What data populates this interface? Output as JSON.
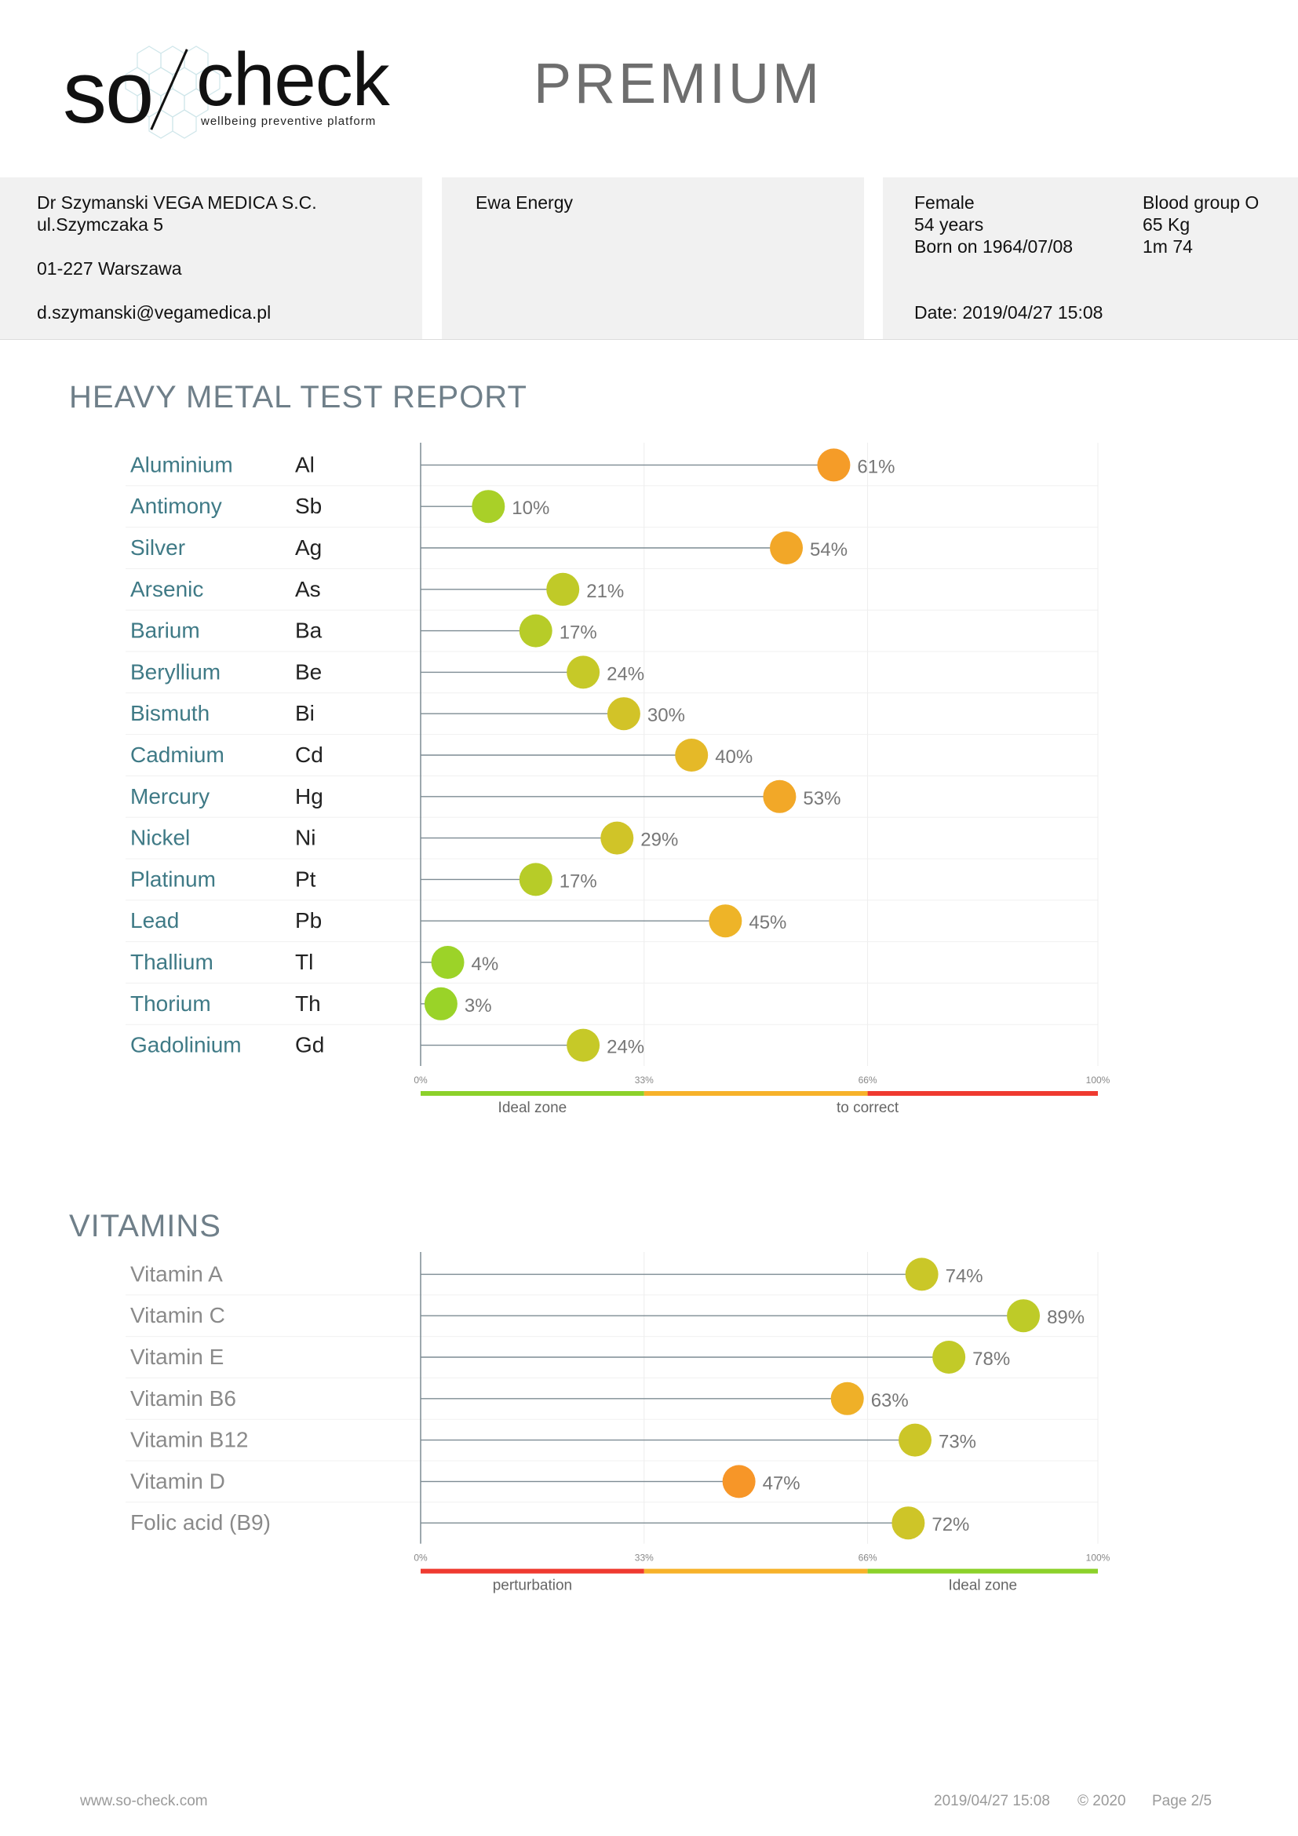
{
  "brand": {
    "logo_so": "so",
    "logo_check": "check",
    "tagline": "wellbeing preventive platform",
    "edition": "PREMIUM"
  },
  "practitioner": {
    "name": "Dr Szymanski VEGA MEDICA S.C.",
    "street": "ul.Szymczaka 5",
    "city": "01-227 Warszawa",
    "email": "d.szymanski@vegamedica.pl"
  },
  "client": {
    "name": "Ewa Energy"
  },
  "patient": {
    "sex": "Female",
    "age": "54 years",
    "born": "Born on 1964/07/08",
    "blood": "Blood group O",
    "weight": "65 Kg",
    "height": "1m 74",
    "date": "Date: 2019/04/27 15:08"
  },
  "sections": {
    "metals_title": "HEAVY METAL TEST REPORT",
    "vitamins_title": "VITAMINS"
  },
  "chart_data": [
    {
      "type": "bar",
      "name": "metals",
      "categories": [
        "Aluminium",
        "Antimony",
        "Silver",
        "Arsenic",
        "Barium",
        "Beryllium",
        "Bismuth",
        "Cadmium",
        "Mercury",
        "Nickel",
        "Platinum",
        "Lead",
        "Thallium",
        "Thorium",
        "Gadolinium"
      ],
      "symbols": [
        "Al",
        "Sb",
        "Ag",
        "As",
        "Ba",
        "Be",
        "Bi",
        "Cd",
        "Hg",
        "Ni",
        "Pt",
        "Pb",
        "Tl",
        "Th",
        "Gd"
      ],
      "values": [
        61,
        10,
        54,
        21,
        17,
        24,
        30,
        40,
        53,
        29,
        17,
        45,
        4,
        3,
        24
      ],
      "value_labels": [
        "61%",
        "10%",
        "54%",
        "21%",
        "17%",
        "24%",
        "30%",
        "40%",
        "53%",
        "29%",
        "17%",
        "45%",
        "4%",
        "3%",
        "24%"
      ],
      "xlim": [
        0,
        100
      ],
      "ticks": [
        "0%",
        "33%",
        "66%",
        "100%"
      ],
      "zones": [
        {
          "label": "Ideal zone",
          "color": "#8cd12a"
        },
        {
          "label": "",
          "color": "#f7b22a"
        },
        {
          "label": "to correct",
          "color": "#ef3a30"
        }
      ],
      "orientation": "horizontal",
      "grid": true
    },
    {
      "type": "bar",
      "name": "vitamins",
      "categories": [
        "Vitamin A",
        "Vitamin C",
        "Vitamin E",
        "Vitamin B6",
        "Vitamin B12",
        "Vitamin D",
        "Folic acid (B9)"
      ],
      "values": [
        74,
        89,
        78,
        63,
        73,
        47,
        72
      ],
      "value_labels": [
        "74%",
        "89%",
        "78%",
        "63%",
        "73%",
        "47%",
        "72%"
      ],
      "xlim": [
        0,
        100
      ],
      "ticks": [
        "0%",
        "33%",
        "66%",
        "100%"
      ],
      "zones": [
        {
          "label": "perturbation",
          "color": "#ef3a30"
        },
        {
          "label": "",
          "color": "#f7b22a"
        },
        {
          "label": "Ideal zone",
          "color": "#8cd12a"
        }
      ],
      "orientation": "horizontal",
      "grid": true
    }
  ],
  "footer": {
    "site": "www.so-check.com",
    "datetime": "2019/04/27 15:08",
    "copyright": "© 2020",
    "page": "Page 2/5"
  }
}
